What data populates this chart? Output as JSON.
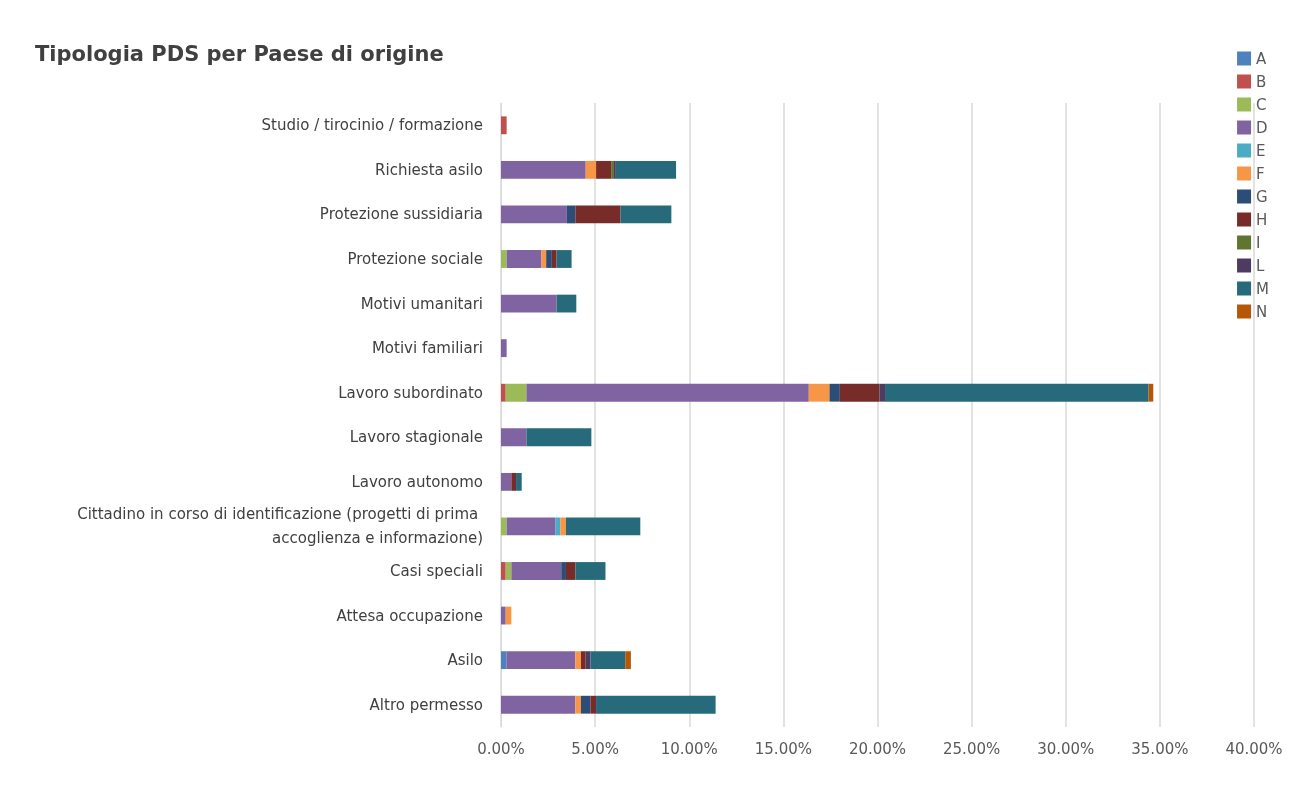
{
  "chart_data": {
    "type": "bar",
    "orientation": "horizontal",
    "stacked": true,
    "title": "Tipologia PDS per Paese di origine",
    "categories": [
      "Studio / tirocinio / formazione",
      "Richiesta asilo",
      "Protezione sussidiaria",
      "Protezione sociale",
      "Motivi umanitari",
      "Motivi familiari",
      "Lavoro subordinato",
      "Lavoro stagionale",
      "Lavoro autonomo",
      "Cittadino in corso di identificazione (progetti di prima accoglienza e informazione)",
      "Casi speciali",
      "Attesa occupazione",
      "Asilo",
      "Altro permesso"
    ],
    "series": [
      {
        "name": "A",
        "color": "#4f81bd",
        "values": [
          null,
          null,
          null,
          null,
          null,
          null,
          null,
          null,
          null,
          null,
          null,
          null,
          0.3,
          null
        ]
      },
      {
        "name": "B",
        "color": "#c0504d",
        "values": [
          0.3,
          null,
          null,
          null,
          null,
          null,
          0.25,
          null,
          null,
          null,
          0.25,
          null,
          null,
          null
        ]
      },
      {
        "name": "C",
        "color": "#9bbb59",
        "values": [
          null,
          null,
          null,
          0.3,
          null,
          null,
          1.1,
          null,
          null,
          0.3,
          0.3,
          null,
          null,
          null
        ]
      },
      {
        "name": "D",
        "color": "#8064a2",
        "values": [
          null,
          4.5,
          3.5,
          1.85,
          2.95,
          0.3,
          15.0,
          1.35,
          0.55,
          2.6,
          2.65,
          0.25,
          3.65,
          3.95
        ]
      },
      {
        "name": "E",
        "color": "#4bacc6",
        "values": [
          null,
          null,
          null,
          null,
          null,
          null,
          null,
          null,
          null,
          0.25,
          null,
          null,
          null,
          null
        ]
      },
      {
        "name": "F",
        "color": "#f79646",
        "values": [
          null,
          0.55,
          null,
          0.25,
          null,
          null,
          1.1,
          null,
          null,
          0.3,
          null,
          0.3,
          0.3,
          0.3
        ]
      },
      {
        "name": "G",
        "color": "#2c4d75",
        "values": [
          null,
          null,
          0.45,
          0.3,
          null,
          null,
          0.55,
          null,
          null,
          null,
          0.25,
          null,
          null,
          0.5
        ]
      },
      {
        "name": "H",
        "color": "#772c2a",
        "values": [
          null,
          0.8,
          2.4,
          0.25,
          null,
          null,
          2.1,
          null,
          0.25,
          null,
          0.5,
          null,
          0.25,
          0.3
        ]
      },
      {
        "name": "I",
        "color": "#5f7530",
        "values": [
          null,
          0.15,
          null,
          null,
          null,
          null,
          null,
          null,
          null,
          null,
          null,
          null,
          null,
          null
        ]
      },
      {
        "name": "L",
        "color": "#4d3b62",
        "values": [
          null,
          0.1,
          null,
          null,
          null,
          null,
          0.3,
          null,
          null,
          null,
          null,
          null,
          0.25,
          null
        ]
      },
      {
        "name": "M",
        "color": "#276a7c",
        "values": [
          null,
          3.2,
          2.7,
          0.8,
          1.05,
          null,
          14.0,
          3.45,
          0.3,
          3.95,
          1.6,
          null,
          1.85,
          6.35
        ]
      },
      {
        "name": "N",
        "color": "#b65708",
        "values": [
          null,
          null,
          null,
          null,
          null,
          null,
          0.25,
          null,
          null,
          null,
          null,
          null,
          0.3,
          null
        ]
      }
    ],
    "xlim": [
      0,
      40
    ],
    "xticks": [
      {
        "value": 0,
        "label": "0.00%"
      },
      {
        "value": 5,
        "label": "5.00%"
      },
      {
        "value": 10,
        "label": "10.00%"
      },
      {
        "value": 15,
        "label": "15.00%"
      },
      {
        "value": 20,
        "label": "20.00%"
      },
      {
        "value": 25,
        "label": "25.00%"
      },
      {
        "value": 30,
        "label": "30.00%"
      },
      {
        "value": 35,
        "label": "35.00%"
      },
      {
        "value": 40,
        "label": "40.00%"
      }
    ],
    "grid": "x",
    "legend": "right"
  }
}
